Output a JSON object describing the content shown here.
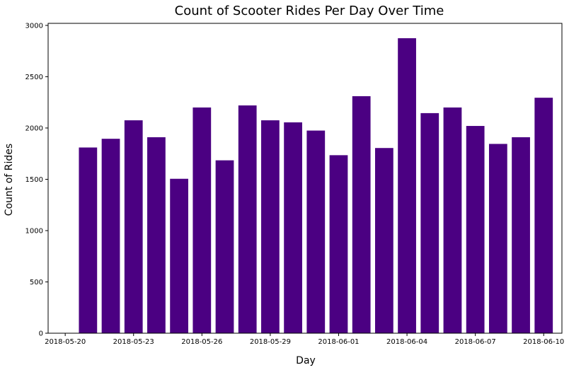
{
  "chart_data": {
    "type": "bar",
    "title": "Count of Scooter Rides Per Day Over Time",
    "xlabel": "Day",
    "ylabel": "Count of Rides",
    "ylim": [
      0,
      3020
    ],
    "yticks": [
      0,
      500,
      1000,
      1500,
      2000,
      2500,
      3000
    ],
    "x_start": "2018-05-19",
    "xlim_days": [
      0.25,
      22.8
    ],
    "xticks": [
      {
        "label": "2018-05-20",
        "day": 1
      },
      {
        "label": "2018-05-23",
        "day": 4
      },
      {
        "label": "2018-05-26",
        "day": 7
      },
      {
        "label": "2018-05-29",
        "day": 10
      },
      {
        "label": "2018-06-01",
        "day": 13
      },
      {
        "label": "2018-06-04",
        "day": 16
      },
      {
        "label": "2018-06-07",
        "day": 19
      },
      {
        "label": "2018-06-10",
        "day": 22
      }
    ],
    "categories": [
      "2018-05-21",
      "2018-05-22",
      "2018-05-23",
      "2018-05-24",
      "2018-05-25",
      "2018-05-26",
      "2018-05-27",
      "2018-05-28",
      "2018-05-29",
      "2018-05-30",
      "2018-05-31",
      "2018-06-01",
      "2018-06-02",
      "2018-06-03",
      "2018-06-04",
      "2018-06-05",
      "2018-06-06",
      "2018-06-07",
      "2018-06-08",
      "2018-06-09",
      "2018-06-10"
    ],
    "values": [
      1810,
      1895,
      2075,
      1910,
      1505,
      2200,
      1685,
      2220,
      2075,
      2055,
      1975,
      1735,
      2310,
      1805,
      2875,
      2145,
      2200,
      2020,
      1845,
      1910,
      2295
    ],
    "bar_color": "#4b0082",
    "grid": false,
    "legend": "none"
  }
}
